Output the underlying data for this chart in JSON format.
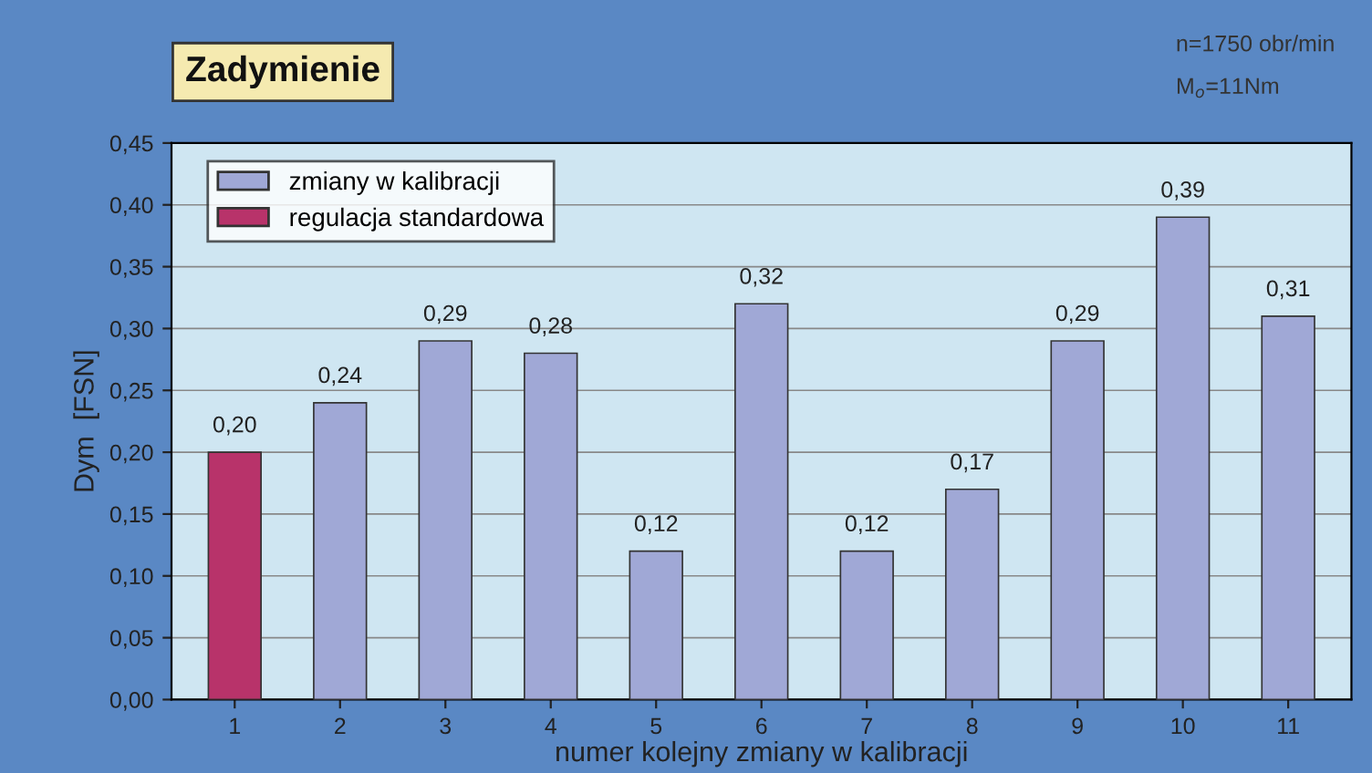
{
  "chart_data": {
    "type": "bar",
    "title": "Zadymienie",
    "xlabel": "numer kolejny zmiany w kalibracji",
    "ylabel": "Dym  [FSN]",
    "annotations": [
      "n=1750 obr/min",
      "M$_{o}$=11Nm"
    ],
    "categories": [
      "1",
      "2",
      "3",
      "4",
      "5",
      "6",
      "7",
      "8",
      "9",
      "10",
      "11"
    ],
    "series": [
      {
        "name": "zmiany w kalibracji",
        "color": "#a0a8d6",
        "values": [
          null,
          0.24,
          0.29,
          0.28,
          0.12,
          0.32,
          0.12,
          0.17,
          0.29,
          0.39,
          0.31
        ],
        "value_labels": [
          null,
          "0,24",
          "0,29",
          "0,28",
          "0,12",
          "0,32",
          "0,12",
          "0,17",
          "0,29",
          "0,39",
          "0,31"
        ]
      },
      {
        "name": "regulacja standardowa",
        "color": "#b8336a",
        "values": [
          0.2,
          null,
          null,
          null,
          null,
          null,
          null,
          null,
          null,
          null,
          null
        ],
        "value_labels": [
          "0,20",
          null,
          null,
          null,
          null,
          null,
          null,
          null,
          null,
          null,
          null
        ]
      }
    ],
    "ylim": [
      0,
      0.45
    ],
    "yticks": [
      {
        "value": 0,
        "label": "0,00"
      },
      {
        "value": 0.05,
        "label": "0,05"
      },
      {
        "value": 0.1,
        "label": "0,10"
      },
      {
        "value": 0.15,
        "label": "0,15"
      },
      {
        "value": 0.2,
        "label": "0,20"
      },
      {
        "value": 0.25,
        "label": "0,25"
      },
      {
        "value": 0.3,
        "label": "0,30"
      },
      {
        "value": 0.35,
        "label": "0,35"
      },
      {
        "value": 0.4,
        "label": "0,40"
      },
      {
        "value": 0.45,
        "label": "0,45"
      }
    ],
    "grid": "y",
    "legend": "top left"
  }
}
